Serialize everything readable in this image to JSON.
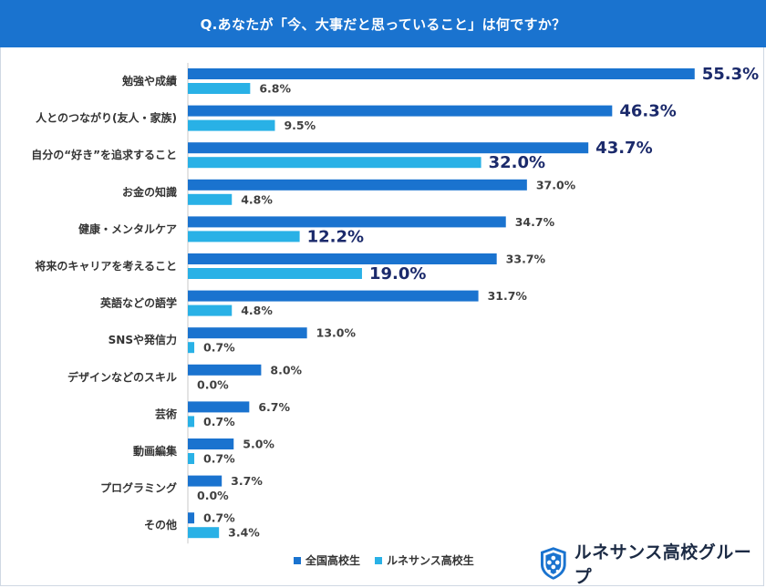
{
  "title": "Q.あなたが「今、大事だと思っていること」は何ですか？",
  "colors": {
    "header": "#1a73cf",
    "series_national": "#1a73cf",
    "series_renaissance": "#29b1e6",
    "label_highlight": "#1b2a6b",
    "label_normal": "#404040"
  },
  "chart_data": {
    "type": "bar",
    "orientation": "horizontal",
    "title": "Q.あなたが「今、大事だと思っていること」は何ですか？",
    "categories": [
      "勉強や成績",
      "人とのつながり(友人・家族)",
      "自分の“好き”を追求すること",
      "お金の知識",
      "健康・メンタルケア",
      "将来のキャリアを考えること",
      "英語などの語学",
      "SNSや発信力",
      "デザインなどのスキル",
      "芸術",
      "動画編集",
      "プログラミング",
      "その他"
    ],
    "series": [
      {
        "name": "全国高校生",
        "values": [
          55.3,
          46.3,
          43.7,
          37.0,
          34.7,
          33.7,
          31.7,
          13.0,
          8.0,
          6.7,
          5.0,
          3.7,
          0.7
        ],
        "labels": [
          "55.3%",
          "46.3%",
          "43.7%",
          "37.0%",
          "34.7%",
          "33.7%",
          "31.7%",
          "13.0%",
          "8.0%",
          "6.7%",
          "5.0%",
          "3.7%",
          "0.7%"
        ],
        "highlight": [
          true,
          true,
          true,
          false,
          false,
          false,
          false,
          false,
          false,
          false,
          false,
          false,
          false
        ]
      },
      {
        "name": "ルネサンス高校生",
        "values": [
          6.8,
          9.5,
          32.0,
          4.8,
          12.2,
          19.0,
          4.8,
          0.7,
          0.0,
          0.7,
          0.7,
          0.0,
          3.4
        ],
        "labels": [
          "6.8%",
          "9.5%",
          "32.0%",
          "4.8%",
          "12.2%",
          "19.0%",
          "4.8%",
          "0.7%",
          "0.0%",
          "0.7%",
          "0.7%",
          "0.0%",
          "3.4%"
        ],
        "highlight": [
          false,
          false,
          true,
          false,
          true,
          true,
          false,
          false,
          false,
          false,
          false,
          false,
          false
        ]
      }
    ],
    "xlim": [
      0,
      100
    ],
    "legend_position": "bottom-center"
  },
  "legend": {
    "items": [
      {
        "label": "全国高校生",
        "color": "#1a73cf"
      },
      {
        "label": "ルネサンス高校生",
        "color": "#29b1e6"
      }
    ]
  },
  "logo": {
    "text": "ルネサンス高校グループ",
    "icon": "shield-logo-icon"
  }
}
